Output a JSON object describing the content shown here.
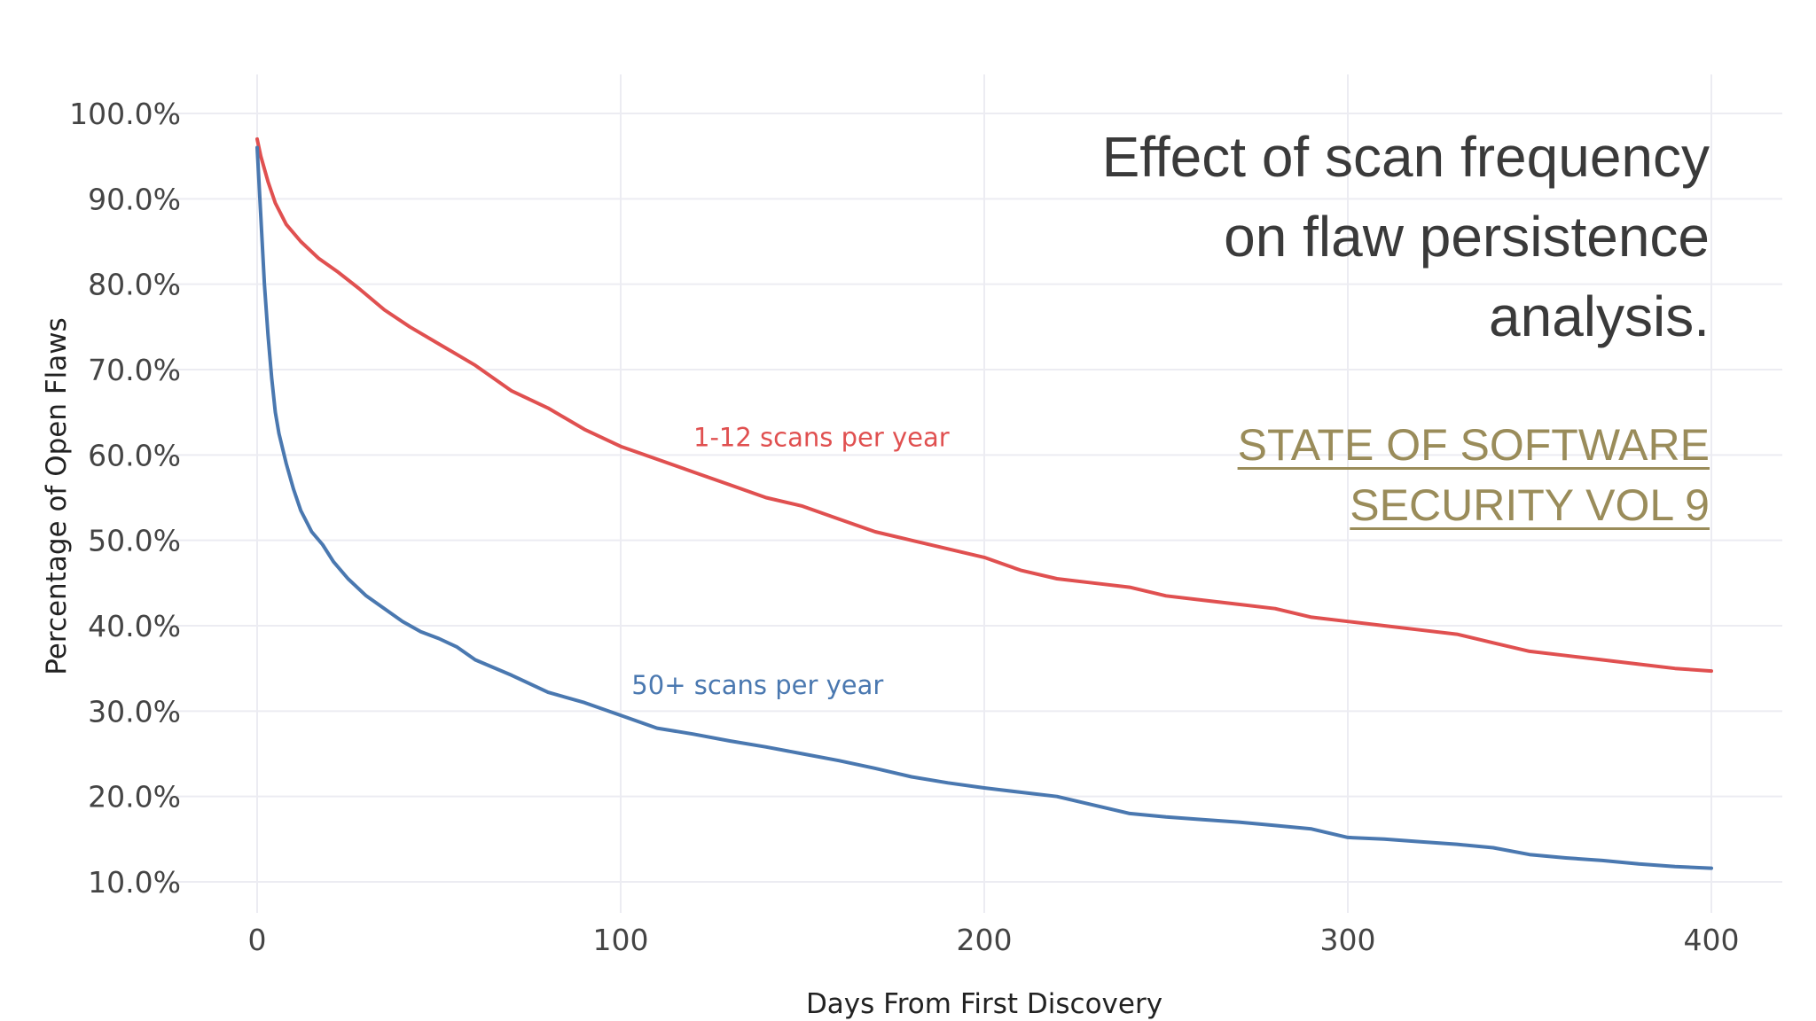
{
  "headline": {
    "line1": "Effect of scan frequency",
    "line2": "on flaw persistence",
    "line3": "analysis."
  },
  "report_link": {
    "line1": "STATE OF SOFTWARE",
    "line2": "SECURITY VOL 9"
  },
  "chart_data": {
    "type": "line",
    "title": "",
    "xlabel": "Days From First Discovery",
    "ylabel": "Percentage of Open Flaws",
    "xlim": [
      0,
      400
    ],
    "ylim": [
      10,
      100
    ],
    "x_ticks": [
      0,
      100,
      200,
      300,
      400
    ],
    "y_ticks": [
      10,
      20,
      30,
      40,
      50,
      60,
      70,
      80,
      90,
      100
    ],
    "y_tick_format": "percent_1dp",
    "grid": true,
    "legend": "none (inline series labels)",
    "series": [
      {
        "name": "1-12 scans per year",
        "color": "#e05050",
        "label_at": [
          120,
          61
        ],
        "points": [
          [
            0,
            97
          ],
          [
            1,
            95
          ],
          [
            3,
            92
          ],
          [
            5,
            89.5
          ],
          [
            8,
            87
          ],
          [
            12,
            85
          ],
          [
            17,
            83
          ],
          [
            22,
            81.5
          ],
          [
            28,
            79.5
          ],
          [
            35,
            77
          ],
          [
            42,
            75
          ],
          [
            50,
            73
          ],
          [
            60,
            70.5
          ],
          [
            70,
            67.5
          ],
          [
            80,
            65.5
          ],
          [
            90,
            63
          ],
          [
            100,
            61
          ],
          [
            110,
            59.5
          ],
          [
            120,
            58
          ],
          [
            130,
            56.5
          ],
          [
            140,
            55
          ],
          [
            150,
            54
          ],
          [
            160,
            52.5
          ],
          [
            170,
            51
          ],
          [
            180,
            50
          ],
          [
            190,
            49
          ],
          [
            200,
            48
          ],
          [
            210,
            46.5
          ],
          [
            220,
            45.5
          ],
          [
            230,
            45
          ],
          [
            240,
            44.5
          ],
          [
            250,
            43.5
          ],
          [
            260,
            43
          ],
          [
            270,
            42.5
          ],
          [
            280,
            42
          ],
          [
            290,
            41
          ],
          [
            300,
            40.5
          ],
          [
            310,
            40
          ],
          [
            320,
            39.5
          ],
          [
            330,
            39
          ],
          [
            340,
            38
          ],
          [
            350,
            37
          ],
          [
            360,
            36.5
          ],
          [
            370,
            36
          ],
          [
            380,
            35.5
          ],
          [
            390,
            35
          ],
          [
            400,
            34.7
          ]
        ]
      },
      {
        "name": "50+ scans per year",
        "color": "#4a78b0",
        "label_at": [
          103,
          32
        ],
        "points": [
          [
            0,
            96
          ],
          [
            1,
            88
          ],
          [
            2,
            80
          ],
          [
            3,
            74
          ],
          [
            4,
            69
          ],
          [
            5,
            65
          ],
          [
            6,
            62.5
          ],
          [
            8,
            59
          ],
          [
            10,
            56
          ],
          [
            12,
            53.5
          ],
          [
            15,
            51
          ],
          [
            18,
            49.5
          ],
          [
            21,
            47.5
          ],
          [
            25,
            45.5
          ],
          [
            30,
            43.5
          ],
          [
            35,
            42
          ],
          [
            40,
            40.5
          ],
          [
            45,
            39.3
          ],
          [
            50,
            38.5
          ],
          [
            55,
            37.5
          ],
          [
            60,
            36
          ],
          [
            70,
            34.2
          ],
          [
            80,
            32.2
          ],
          [
            90,
            31
          ],
          [
            100,
            29.5
          ],
          [
            110,
            28
          ],
          [
            120,
            27.3
          ],
          [
            130,
            26.5
          ],
          [
            140,
            25.8
          ],
          [
            150,
            25
          ],
          [
            160,
            24.2
          ],
          [
            170,
            23.3
          ],
          [
            180,
            22.3
          ],
          [
            190,
            21.6
          ],
          [
            200,
            21
          ],
          [
            210,
            20.5
          ],
          [
            220,
            20
          ],
          [
            230,
            19
          ],
          [
            240,
            18
          ],
          [
            250,
            17.6
          ],
          [
            260,
            17.3
          ],
          [
            270,
            17
          ],
          [
            280,
            16.6
          ],
          [
            290,
            16.2
          ],
          [
            300,
            15.2
          ],
          [
            310,
            15
          ],
          [
            320,
            14.7
          ],
          [
            330,
            14.4
          ],
          [
            340,
            14
          ],
          [
            350,
            13.2
          ],
          [
            360,
            12.8
          ],
          [
            370,
            12.5
          ],
          [
            380,
            12.1
          ],
          [
            390,
            11.8
          ],
          [
            400,
            11.6
          ]
        ]
      }
    ]
  }
}
